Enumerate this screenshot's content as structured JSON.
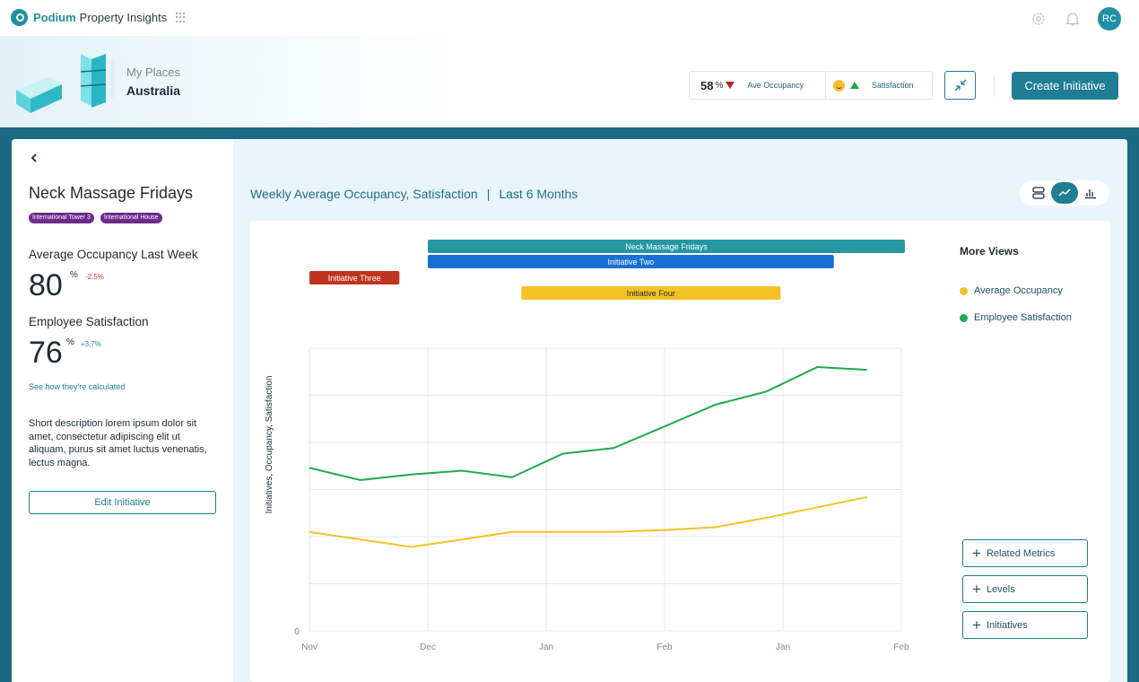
{
  "app": {
    "brand": "Podium",
    "product": "Property Insights",
    "avatar_initials": "RC"
  },
  "hero": {
    "places_label": "My Places",
    "places_name": "Australia",
    "occupancy_value": "58",
    "occupancy_unit": "%",
    "occupancy_label": "Ave Occupancy",
    "satisfaction_label": "Satisfaction",
    "create_label": "Create Initiative"
  },
  "initiative": {
    "title": "Neck Massage Fridays",
    "tags": [
      "International Tower 3",
      "International House"
    ],
    "occupancy_label": "Average Occupancy Last Week",
    "occupancy_value": "80",
    "occupancy_unit": "%",
    "occupancy_delta": "-2.5%",
    "satisfaction_label": "Employee Satisfaction",
    "satisfaction_value": "76",
    "satisfaction_unit": "%",
    "satisfaction_delta": "+3.7%",
    "how_link": "See how they're calculated",
    "description": "Short description lorem ipsum dolor sit amet, consectetur adipiscing elit ut aliquam, purus sit amet luctus venenatis, lectus magna.",
    "edit_label": "Edit Initiative"
  },
  "chart_heading": {
    "title": "Weekly Average Occupancy, Satisfaction",
    "separator": "|",
    "period": "Last 6 Months"
  },
  "side": {
    "more_views": "More Views",
    "buttons": [
      "Related Metrics",
      "Levels",
      "Initiatives"
    ]
  },
  "colors": {
    "occupancy": "#f5c224",
    "satisfaction": "#1faa4c",
    "neck_massage": "#2497a3",
    "initiative_two": "#1a6fd6",
    "initiative_three": "#c0341d",
    "initiative_four": "#f5c224",
    "accent": "#1f7d94"
  },
  "chart_data": {
    "type": "line",
    "ylabel": "Initiatives, Occupancy, Satisfaction",
    "xlabel": "",
    "x_ticks": [
      "Nov",
      "Dec",
      "Jan",
      "Feb",
      "Jan",
      "Feb"
    ],
    "y_tick_zero": "0",
    "ylim": [
      0,
      6
    ],
    "x": [
      0,
      0.43,
      0.86,
      1.29,
      1.71,
      2.14,
      2.57,
      3.0,
      3.43,
      3.86,
      4.29,
      4.71
    ],
    "series": [
      {
        "name": "Average Occupancy",
        "color": "#f5c224",
        "values": [
          2.1,
          1.94,
          1.78,
          1.94,
          2.1,
          2.1,
          2.1,
          2.14,
          2.2,
          2.4,
          2.62,
          2.84
        ]
      },
      {
        "name": "Employee Satisfaction",
        "color": "#1faa4c",
        "values": [
          3.46,
          3.2,
          3.32,
          3.4,
          3.26,
          3.76,
          3.88,
          4.34,
          4.8,
          5.08,
          5.6,
          5.54
        ]
      }
    ],
    "initiatives": [
      {
        "name": "Neck Massage Fridays",
        "start": 1.0,
        "end": 5.03,
        "row": 0,
        "color": "#2497a3",
        "text_color": "#ffffff"
      },
      {
        "name": "Initiative Two",
        "start": 1.0,
        "end": 4.43,
        "row": 1,
        "color": "#1a6fd6",
        "text_color": "#ffffff"
      },
      {
        "name": "Initiative Three",
        "start": 0.0,
        "end": 0.76,
        "row": 2,
        "color": "#c0341d",
        "text_color": "#ffffff"
      },
      {
        "name": "Initiative Four",
        "start": 1.79,
        "end": 3.98,
        "row": 3,
        "color": "#f5c224",
        "text_color": "#1e2a32"
      }
    ],
    "grid": true
  }
}
